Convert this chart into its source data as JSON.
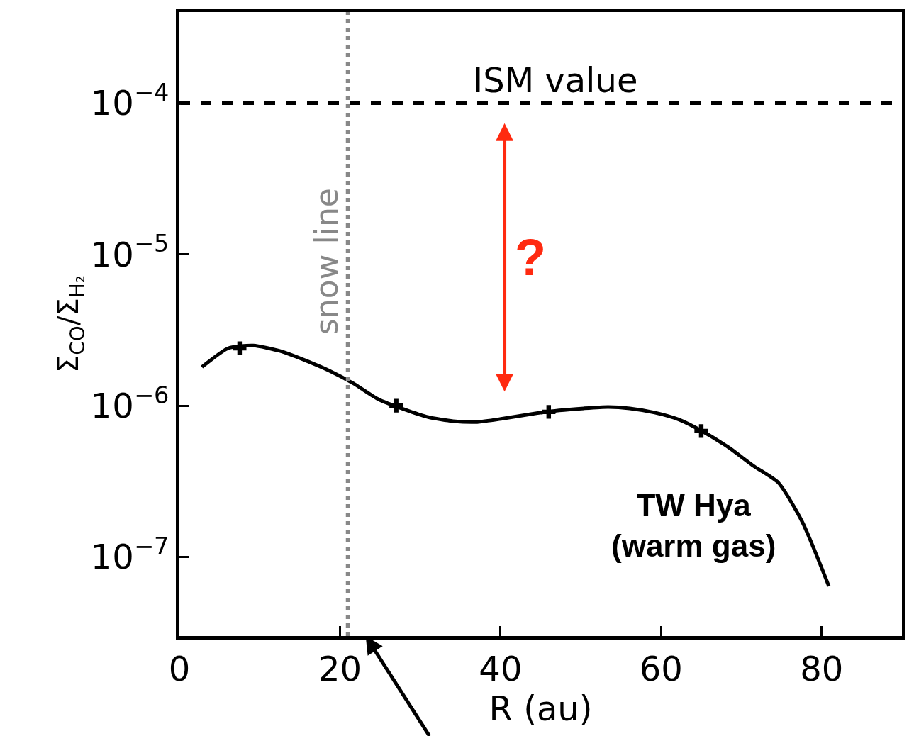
{
  "chart_data": {
    "type": "line",
    "xlabel": "R (au)",
    "ylabel": "Σ$_{CO}$/Σ$_{H₂}$",
    "log": "y",
    "xlim": [
      0,
      90
    ],
    "xticks": [
      0,
      20,
      40,
      60,
      80
    ],
    "ylim": [
      3e-08,
      0.0004
    ],
    "yticks": [
      {
        "value": 1e-07,
        "label": "10$^{−7}$"
      },
      {
        "value": 1e-06,
        "label": "10$^{−6}$"
      },
      {
        "value": 1e-05,
        "label": "10$^{−5}$"
      },
      {
        "value": 0.0001,
        "label": "10$^{−4}$"
      }
    ],
    "series": [
      {
        "color": "#000000",
        "line_style": "solid",
        "marker": "none",
        "x": [
          2.8,
          6.1,
          9.2,
          12.5,
          15.6,
          18.7,
          21.7,
          24.8,
          27.9,
          31.0,
          34.1,
          37.1,
          40.2,
          43.8,
          47.3,
          50.4,
          53.4,
          56.1,
          59.2,
          62.2,
          65.3,
          68.4,
          71.5,
          74.6,
          77.6,
          80.9
        ],
        "values": [
          1.8e-06,
          2.4e-06,
          2.5e-06,
          2.3e-06,
          2e-06,
          1.7e-06,
          1.4e-06,
          1.1e-06,
          9.5e-07,
          8.4e-07,
          7.9e-07,
          7.8e-07,
          8.2e-07,
          8.8e-07,
          9.3e-07,
          9.6e-07,
          9.8e-07,
          9.6e-07,
          9e-07,
          8.1e-07,
          6.7e-07,
          5.3e-07,
          4e-07,
          3.1e-07,
          1.7e-07,
          6.4e-08
        ]
      },
      {
        "type": "scatter",
        "color": "#000000",
        "marker": "cross",
        "x": [
          7.5,
          27,
          46,
          65
        ],
        "values": [
          2.4e-06,
          1e-06,
          9.1e-07,
          6.8e-07
        ]
      }
    ],
    "ref_lines": [
      {
        "axis": "y",
        "value": 0.0001,
        "label": "ISM value",
        "color": "#000000",
        "line_style": "dashed"
      },
      {
        "axis": "x",
        "value": 21,
        "label": "snow line",
        "color": "#888888",
        "line_style": "dotted"
      }
    ],
    "annotations": [
      "?",
      "TW Hya\n(warm gas)"
    ]
  }
}
